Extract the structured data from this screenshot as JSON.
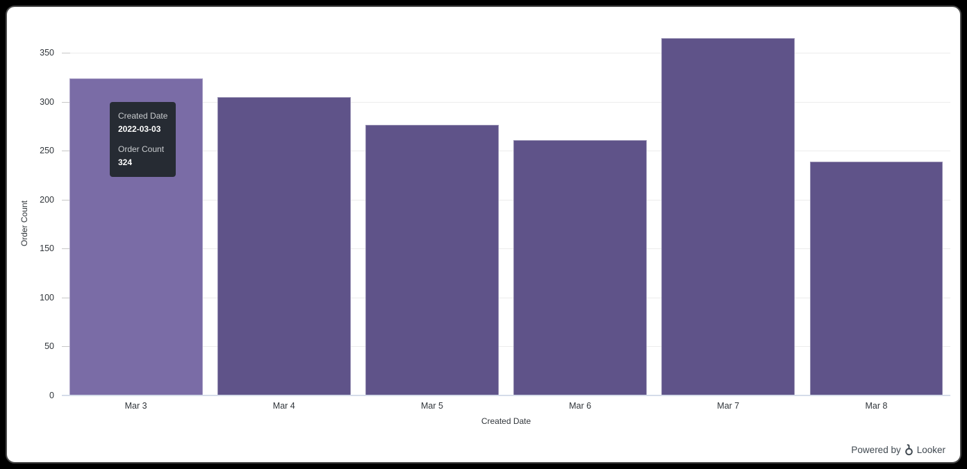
{
  "chart_data": {
    "type": "bar",
    "categories": [
      "Mar 3",
      "Mar 4",
      "Mar 5",
      "Mar 6",
      "Mar 7",
      "Mar 8"
    ],
    "values": [
      324,
      305,
      276,
      261,
      365,
      239
    ],
    "title": "",
    "xlabel": "Created Date",
    "ylabel": "Order Count",
    "ylim": [
      0,
      350
    ],
    "y_ticks": [
      0,
      50,
      100,
      150,
      200,
      250,
      300,
      350
    ],
    "grid": true,
    "legend": false,
    "bar_color": "#5f5389",
    "bar_hover_color": "#7a6ca6",
    "hovered_index": 0
  },
  "tooltip": {
    "dimension_label": "Created Date",
    "dimension_value": "2022-03-03",
    "measure_label": "Order Count",
    "measure_value": "324"
  },
  "footer": {
    "powered_by": "Powered by",
    "brand": "Looker"
  }
}
